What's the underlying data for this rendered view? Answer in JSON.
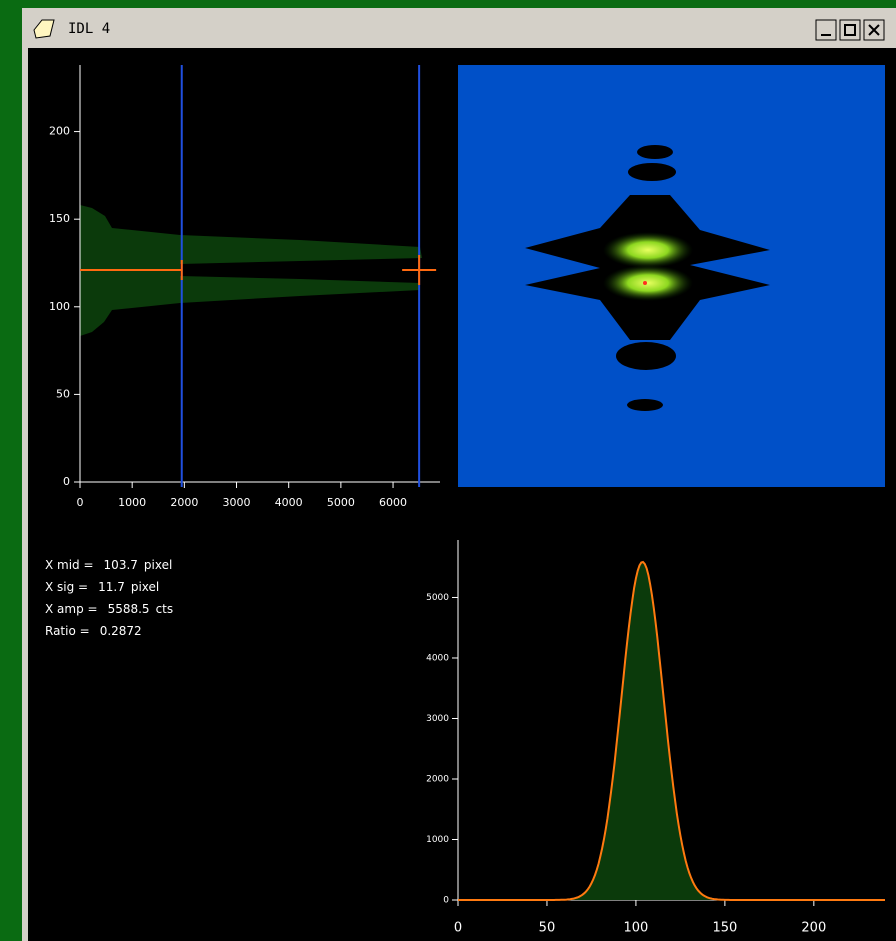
{
  "window": {
    "title": "IDL 4"
  },
  "profile_plot": {
    "xlim": [
      0,
      6900
    ],
    "ylim": [
      0,
      238
    ],
    "xticks": [
      0,
      1000,
      2000,
      3000,
      4000,
      5000,
      6000
    ],
    "yticks": [
      0,
      50,
      100,
      150,
      200
    ],
    "cursor_x": [
      1950,
      6500
    ],
    "center_y": 121
  },
  "fit_text": [
    {
      "label": "X mid =",
      "value": 103.7,
      "unit": "pixel"
    },
    {
      "label": "X sig =",
      "value": 11.7,
      "unit": "pixel"
    },
    {
      "label": "X amp =",
      "value": 5588.5,
      "unit": "cts"
    },
    {
      "label": "Ratio =",
      "value": 0.2872
    }
  ],
  "fit_plot": {
    "xlim": [
      0,
      240
    ],
    "ylim": [
      0,
      5950
    ],
    "xticks": [
      0,
      50,
      100,
      150,
      200
    ],
    "yticks": [
      0,
      1000,
      2000,
      3000,
      4000,
      5000
    ]
  }
}
